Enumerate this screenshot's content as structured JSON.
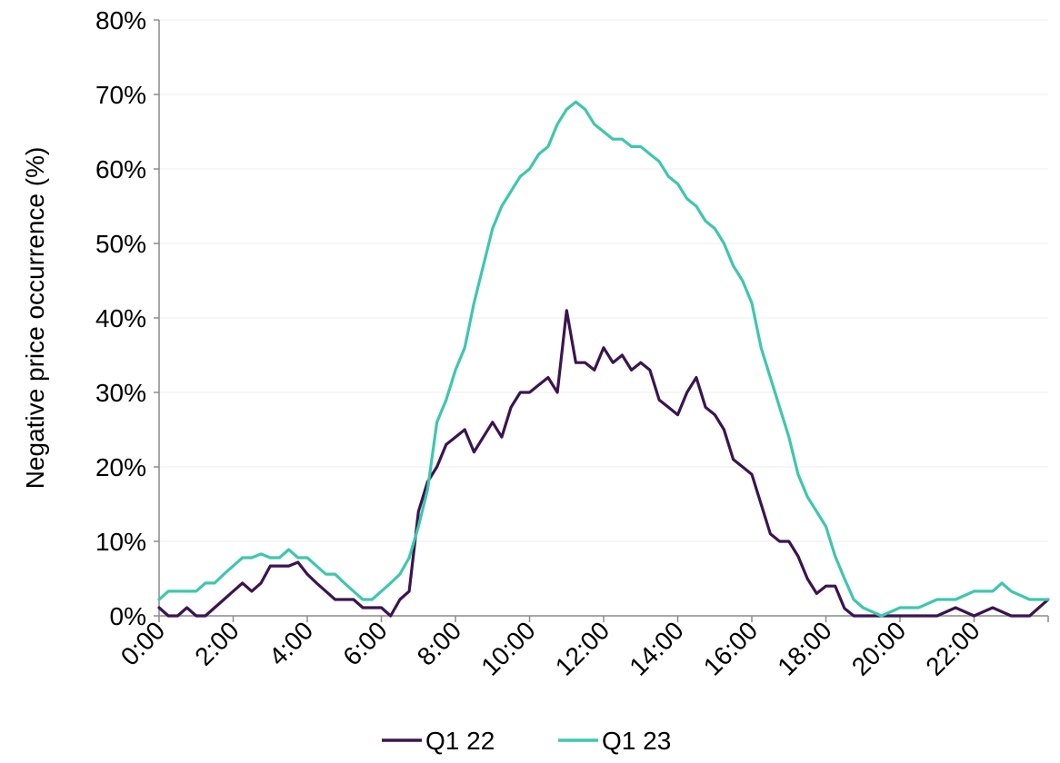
{
  "chart_data": {
    "type": "line",
    "title": "",
    "xlabel": "",
    "ylabel": "Negative price occurrence (%)",
    "x_range": [
      "0:00",
      "24:00"
    ],
    "x_ticks": [
      "0:00",
      "2:00",
      "4:00",
      "6:00",
      "8:00",
      "10:00",
      "12:00",
      "14:00",
      "16:00",
      "18:00",
      "20:00",
      "22:00"
    ],
    "y_ticks": [
      "0%",
      "10%",
      "20%",
      "30%",
      "40%",
      "50%",
      "60%",
      "70%",
      "80%"
    ],
    "ylim": [
      0,
      80
    ],
    "grid": "horizontal",
    "legend_position": "bottom",
    "series": [
      {
        "name": "Q1 22",
        "color": "#3b1450",
        "points": [
          [
            "0:00",
            1.1
          ],
          [
            "0:15",
            0
          ],
          [
            "0:30",
            0
          ],
          [
            "0:45",
            1.1
          ],
          [
            "1:00",
            0
          ],
          [
            "1:15",
            0
          ],
          [
            "1:30",
            1.1
          ],
          [
            "1:45",
            2.2
          ],
          [
            "2:00",
            3.3
          ],
          [
            "2:15",
            4.4
          ],
          [
            "2:30",
            3.3
          ],
          [
            "2:45",
            4.4
          ],
          [
            "3:00",
            6.7
          ],
          [
            "3:15",
            6.7
          ],
          [
            "3:30",
            6.7
          ],
          [
            "3:45",
            7.2
          ],
          [
            "4:00",
            5.6
          ],
          [
            "4:15",
            4.4
          ],
          [
            "4:30",
            3.3
          ],
          [
            "4:45",
            2.2
          ],
          [
            "5:00",
            2.2
          ],
          [
            "5:15",
            2.2
          ],
          [
            "5:30",
            1.1
          ],
          [
            "5:45",
            1.1
          ],
          [
            "6:00",
            1.1
          ],
          [
            "6:15",
            0
          ],
          [
            "6:30",
            2.2
          ],
          [
            "6:45",
            3.3
          ],
          [
            "7:00",
            14
          ],
          [
            "7:15",
            18
          ],
          [
            "7:30",
            20
          ],
          [
            "7:45",
            23
          ],
          [
            "8:00",
            24
          ],
          [
            "8:15",
            25
          ],
          [
            "8:30",
            22
          ],
          [
            "8:45",
            24
          ],
          [
            "9:00",
            26
          ],
          [
            "9:15",
            24
          ],
          [
            "9:30",
            28
          ],
          [
            "9:45",
            30
          ],
          [
            "10:00",
            30
          ],
          [
            "10:15",
            31
          ],
          [
            "10:30",
            32
          ],
          [
            "10:45",
            30
          ],
          [
            "11:00",
            41
          ],
          [
            "11:15",
            34
          ],
          [
            "11:30",
            34
          ],
          [
            "11:45",
            33
          ],
          [
            "12:00",
            36
          ],
          [
            "12:15",
            34
          ],
          [
            "12:30",
            35
          ],
          [
            "12:45",
            33
          ],
          [
            "13:00",
            34
          ],
          [
            "13:15",
            33
          ],
          [
            "13:30",
            29
          ],
          [
            "13:45",
            28
          ],
          [
            "14:00",
            27
          ],
          [
            "14:15",
            30
          ],
          [
            "14:30",
            32
          ],
          [
            "14:45",
            28
          ],
          [
            "15:00",
            27
          ],
          [
            "15:15",
            25
          ],
          [
            "15:30",
            21
          ],
          [
            "15:45",
            20
          ],
          [
            "16:00",
            19
          ],
          [
            "16:15",
            15
          ],
          [
            "16:30",
            11
          ],
          [
            "16:45",
            10
          ],
          [
            "17:00",
            10
          ],
          [
            "17:15",
            8
          ],
          [
            "17:30",
            5
          ],
          [
            "17:45",
            3
          ],
          [
            "18:00",
            4
          ],
          [
            "18:15",
            4
          ],
          [
            "18:30",
            1
          ],
          [
            "18:45",
            0
          ],
          [
            "19:00",
            0
          ],
          [
            "19:30",
            0
          ],
          [
            "20:00",
            0
          ],
          [
            "20:30",
            0
          ],
          [
            "21:00",
            0
          ],
          [
            "21:30",
            1.1
          ],
          [
            "22:00",
            0
          ],
          [
            "22:30",
            1.1
          ],
          [
            "23:00",
            0
          ],
          [
            "23:30",
            0
          ],
          [
            "23:45",
            1.1
          ],
          [
            "24:00",
            2.2
          ]
        ]
      },
      {
        "name": "Q1 23",
        "color": "#3ec7ad",
        "points": [
          [
            "0:00",
            2.2
          ],
          [
            "0:15",
            3.3
          ],
          [
            "0:30",
            3.3
          ],
          [
            "0:45",
            3.3
          ],
          [
            "1:00",
            3.3
          ],
          [
            "1:15",
            4.4
          ],
          [
            "1:30",
            4.4
          ],
          [
            "1:45",
            5.6
          ],
          [
            "2:00",
            6.7
          ],
          [
            "2:15",
            7.8
          ],
          [
            "2:30",
            7.8
          ],
          [
            "2:45",
            8.3
          ],
          [
            "3:00",
            7.8
          ],
          [
            "3:15",
            7.8
          ],
          [
            "3:30",
            8.9
          ],
          [
            "3:45",
            7.8
          ],
          [
            "4:00",
            7.8
          ],
          [
            "4:15",
            6.7
          ],
          [
            "4:30",
            5.6
          ],
          [
            "4:45",
            5.6
          ],
          [
            "5:00",
            4.4
          ],
          [
            "5:15",
            3.3
          ],
          [
            "5:30",
            2.2
          ],
          [
            "5:45",
            2.2
          ],
          [
            "6:00",
            3.3
          ],
          [
            "6:15",
            4.4
          ],
          [
            "6:30",
            5.6
          ],
          [
            "6:45",
            7.8
          ],
          [
            "7:00",
            12
          ],
          [
            "7:15",
            17
          ],
          [
            "7:30",
            26
          ],
          [
            "7:45",
            29
          ],
          [
            "8:00",
            33
          ],
          [
            "8:15",
            36
          ],
          [
            "8:30",
            42
          ],
          [
            "8:45",
            47
          ],
          [
            "9:00",
            52
          ],
          [
            "9:15",
            55
          ],
          [
            "9:30",
            57
          ],
          [
            "9:45",
            59
          ],
          [
            "10:00",
            60
          ],
          [
            "10:15",
            62
          ],
          [
            "10:30",
            63
          ],
          [
            "10:45",
            66
          ],
          [
            "11:00",
            68
          ],
          [
            "11:15",
            69
          ],
          [
            "11:30",
            68
          ],
          [
            "11:45",
            66
          ],
          [
            "12:00",
            65
          ],
          [
            "12:15",
            64
          ],
          [
            "12:30",
            64
          ],
          [
            "12:45",
            63
          ],
          [
            "13:00",
            63
          ],
          [
            "13:15",
            62
          ],
          [
            "13:30",
            61
          ],
          [
            "13:45",
            59
          ],
          [
            "14:00",
            58
          ],
          [
            "14:15",
            56
          ],
          [
            "14:30",
            55
          ],
          [
            "14:45",
            53
          ],
          [
            "15:00",
            52
          ],
          [
            "15:15",
            50
          ],
          [
            "15:30",
            47
          ],
          [
            "15:45",
            45
          ],
          [
            "16:00",
            42
          ],
          [
            "16:15",
            36
          ],
          [
            "16:30",
            32
          ],
          [
            "16:45",
            28
          ],
          [
            "17:00",
            24
          ],
          [
            "17:15",
            19
          ],
          [
            "17:30",
            16
          ],
          [
            "17:45",
            14
          ],
          [
            "18:00",
            12
          ],
          [
            "18:15",
            8
          ],
          [
            "18:30",
            5
          ],
          [
            "18:45",
            2.2
          ],
          [
            "19:00",
            1.1
          ],
          [
            "19:30",
            0
          ],
          [
            "20:00",
            1.1
          ],
          [
            "20:30",
            1.1
          ],
          [
            "21:00",
            2.2
          ],
          [
            "21:30",
            2.2
          ],
          [
            "22:00",
            3.3
          ],
          [
            "22:30",
            3.3
          ],
          [
            "22:45",
            4.4
          ],
          [
            "23:00",
            3.3
          ],
          [
            "23:30",
            2.2
          ],
          [
            "24:00",
            2.2
          ]
        ]
      }
    ]
  }
}
